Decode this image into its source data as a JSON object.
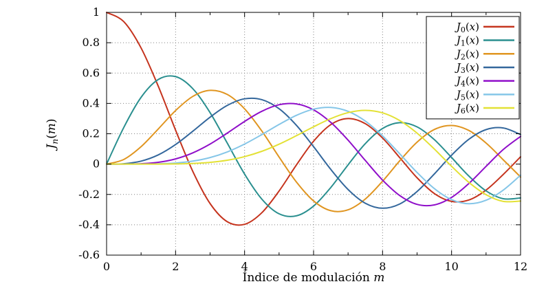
{
  "chart_data": {
    "type": "line",
    "title": "",
    "xlabel_text": "Índice de modulación ",
    "xlabel_var": "m",
    "ylabel": {
      "base": "J",
      "sub": "n",
      "open": "(",
      "var": "m",
      "close": ")"
    },
    "xlim": [
      0,
      12
    ],
    "ylim": [
      -0.6,
      1
    ],
    "grid": "dotted",
    "legend_position": "top-right",
    "x_tick_values": [
      0,
      2,
      4,
      6,
      8,
      10,
      12
    ],
    "x_tick_labels": [
      "0",
      "2",
      "4",
      "6",
      "8",
      "10",
      "12"
    ],
    "x_minor_ticks": [
      1,
      3,
      5,
      7,
      9,
      11
    ],
    "y_tick_values": [
      -0.6,
      -0.4,
      -0.2,
      0,
      0.2,
      0.4,
      0.6,
      0.8,
      1
    ],
    "y_tick_labels": [
      "-0.6",
      "-0.4",
      "-0.2",
      "0",
      "0.2",
      "0.4",
      "0.6",
      "0.8",
      "1"
    ],
    "x": [
      0,
      0.5,
      1,
      1.5,
      2,
      2.5,
      3,
      3.5,
      4,
      4.5,
      5,
      5.5,
      6,
      6.5,
      7,
      7.5,
      8,
      8.5,
      9,
      9.5,
      10,
      10.5,
      11,
      11.5,
      12
    ],
    "series": [
      {
        "name": "J0",
        "label_base": "J",
        "label_sub": "0",
        "label_arg": "(x)",
        "color": "#c5331d",
        "values": [
          1,
          0.9385,
          0.7652,
          0.5118,
          0.2239,
          -0.0484,
          -0.2601,
          -0.3801,
          -0.3971,
          -0.3205,
          -0.1776,
          -0.0068,
          0.1506,
          0.2601,
          0.3001,
          0.2663,
          0.1717,
          0.0419,
          -0.0903,
          -0.1939,
          -0.2459,
          -0.2366,
          -0.1712,
          -0.0677,
          0.0477
        ]
      },
      {
        "name": "J1",
        "label_base": "J",
        "label_sub": "1",
        "label_arg": "(x)",
        "color": "#2a8f8f",
        "values": [
          0,
          0.2423,
          0.4401,
          0.5579,
          0.5767,
          0.4971,
          0.3391,
          0.1374,
          -0.066,
          -0.2311,
          -0.3276,
          -0.3414,
          -0.2767,
          -0.1538,
          -0.0047,
          0.1352,
          0.2346,
          0.2731,
          0.2453,
          0.1613,
          0.0435,
          -0.0789,
          -0.1768,
          -0.2284,
          -0.2234
        ]
      },
      {
        "name": "J2",
        "label_base": "J",
        "label_sub": "2",
        "label_arg": "(x)",
        "color": "#e09520",
        "values": [
          0,
          0.0306,
          0.1149,
          0.2321,
          0.3528,
          0.4461,
          0.4861,
          0.4586,
          0.3641,
          0.2178,
          0.0466,
          -0.1173,
          -0.2429,
          -0.3074,
          -0.3014,
          -0.2303,
          -0.113,
          0.0223,
          0.1448,
          0.2279,
          0.2546,
          0.2216,
          0.139,
          0.0279,
          -0.0849
        ]
      },
      {
        "name": "J3",
        "label_base": "J",
        "label_sub": "3",
        "label_arg": "(x)",
        "color": "#33679c",
        "values": [
          0,
          0.0026,
          0.0196,
          0.061,
          0.1289,
          0.2166,
          0.3091,
          0.3868,
          0.4302,
          0.4247,
          0.3648,
          0.2561,
          0.1148,
          -0.0353,
          -0.1676,
          -0.2581,
          -0.2911,
          -0.2626,
          -0.1809,
          -0.0653,
          0.0584,
          0.1633,
          0.2273,
          0.2381,
          0.1951
        ]
      },
      {
        "name": "J4",
        "label_base": "J",
        "label_sub": "4",
        "label_arg": "(x)",
        "color": "#8f0ec9",
        "values": [
          0,
          0.0002,
          0.0025,
          0.0118,
          0.034,
          0.0738,
          0.132,
          0.2044,
          0.2811,
          0.3484,
          0.3912,
          0.3967,
          0.3576,
          0.2748,
          0.1578,
          0.0238,
          -0.1054,
          -0.2077,
          -0.2655,
          -0.2691,
          -0.2196,
          -0.1283,
          -0.015,
          0.0963,
          0.1825
        ]
      },
      {
        "name": "J5",
        "label_base": "J",
        "label_sub": "5",
        "label_arg": "(x)",
        "color": "#85c6e8",
        "values": [
          0,
          0.0,
          0.0002,
          0.0018,
          0.007,
          0.0195,
          0.043,
          0.0804,
          0.1321,
          0.1947,
          0.2611,
          0.3209,
          0.3621,
          0.3736,
          0.3479,
          0.2833,
          0.1858,
          0.0671,
          -0.055,
          -0.1613,
          -0.2341,
          -0.2611,
          -0.2383,
          -0.1711,
          -0.0735
        ]
      },
      {
        "name": "J6",
        "label_base": "J",
        "label_sub": "6",
        "label_arg": "(x)",
        "color": "#e3e135",
        "values": [
          0,
          0,
          0.0,
          0.0002,
          0.0012,
          0.0042,
          0.0114,
          0.0254,
          0.0491,
          0.0843,
          0.131,
          0.1868,
          0.2458,
          0.2999,
          0.3392,
          0.3541,
          0.3376,
          0.2867,
          0.2043,
          0.0993,
          -0.0145,
          -0.1203,
          -0.2016,
          -0.246,
          -0.2437
        ]
      }
    ]
  },
  "colors": {
    "axis": "#000000",
    "grid": "#808080",
    "background": "#ffffff",
    "legend_border": "#000000"
  }
}
